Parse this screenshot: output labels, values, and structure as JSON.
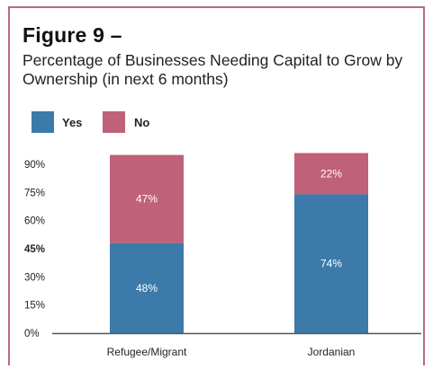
{
  "figure": {
    "label": "Figure 9 –",
    "subtitle": "Percentage of Businesses Needing Capital to Grow by Ownership (in next 6 months)"
  },
  "colors": {
    "yes": "#3b7aa9",
    "no": "#bf6178",
    "border": "#b86a85",
    "axis": "#555555"
  },
  "chart_data": {
    "type": "bar",
    "stacked": true,
    "title": "Percentage of Businesses Needing Capital to Grow by Ownership (in next 6 months)",
    "categories": [
      "Refugee/Migrant",
      "Jordanian"
    ],
    "series": [
      {
        "name": "Yes",
        "values": [
          48,
          74
        ],
        "labels": [
          "48%",
          "74%"
        ]
      },
      {
        "name": "No",
        "values": [
          47,
          22
        ],
        "labels": [
          "47%",
          "22%"
        ]
      }
    ],
    "yticks": [
      "0%",
      "15%",
      "30%",
      "45%",
      "60%",
      "75%",
      "90%"
    ],
    "ytick_values": [
      0,
      15,
      30,
      45,
      60,
      75,
      90
    ],
    "ylim": [
      0,
      90
    ],
    "grid": false,
    "legend": "top-left"
  }
}
